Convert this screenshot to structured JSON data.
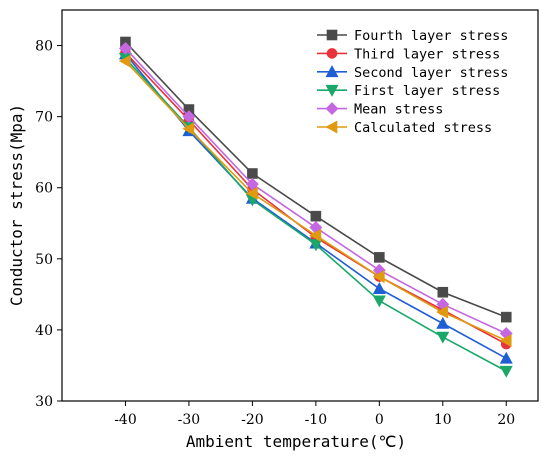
{
  "chart_data": {
    "type": "line",
    "xlabel": "Ambient temperature(℃)",
    "ylabel": "Conductor stress(Mpa)",
    "x": [
      -40,
      -30,
      -20,
      -10,
      0,
      10,
      20
    ],
    "xlim": [
      -50,
      25
    ],
    "ylim": [
      30,
      85
    ],
    "xticks": [
      -40,
      -30,
      -20,
      -10,
      0,
      10,
      20
    ],
    "yticks": [
      30,
      40,
      50,
      60,
      70,
      80
    ],
    "grid": false,
    "legend_position": "top-right",
    "series": [
      {
        "name": "Fourth layer stress",
        "color": "#4a4a4a",
        "marker": "square",
        "values": [
          80.5,
          71.0,
          62.0,
          56.0,
          50.2,
          45.3,
          41.8
        ]
      },
      {
        "name": "Third layer stress",
        "color": "#e8333a",
        "marker": "circle",
        "values": [
          79.0,
          69.5,
          59.8,
          53.0,
          47.5,
          42.8,
          38.0
        ]
      },
      {
        "name": "Second layer stress",
        "color": "#1f5fd6",
        "marker": "triangle-up",
        "values": [
          78.8,
          68.0,
          58.5,
          52.2,
          45.8,
          40.9,
          36.0
        ]
      },
      {
        "name": "First layer stress",
        "color": "#1aa86a",
        "marker": "triangle-down",
        "values": [
          78.2,
          68.5,
          58.3,
          52.0,
          44.1,
          39.0,
          34.2
        ]
      },
      {
        "name": "Mean stress",
        "color": "#c467e0",
        "marker": "diamond",
        "values": [
          79.6,
          70.0,
          60.5,
          54.4,
          48.4,
          43.6,
          39.5
        ]
      },
      {
        "name": "Calculated stress",
        "color": "#e09a10",
        "marker": "triangle-left",
        "values": [
          77.8,
          68.3,
          59.2,
          53.3,
          47.5,
          42.5,
          38.5
        ]
      }
    ]
  }
}
